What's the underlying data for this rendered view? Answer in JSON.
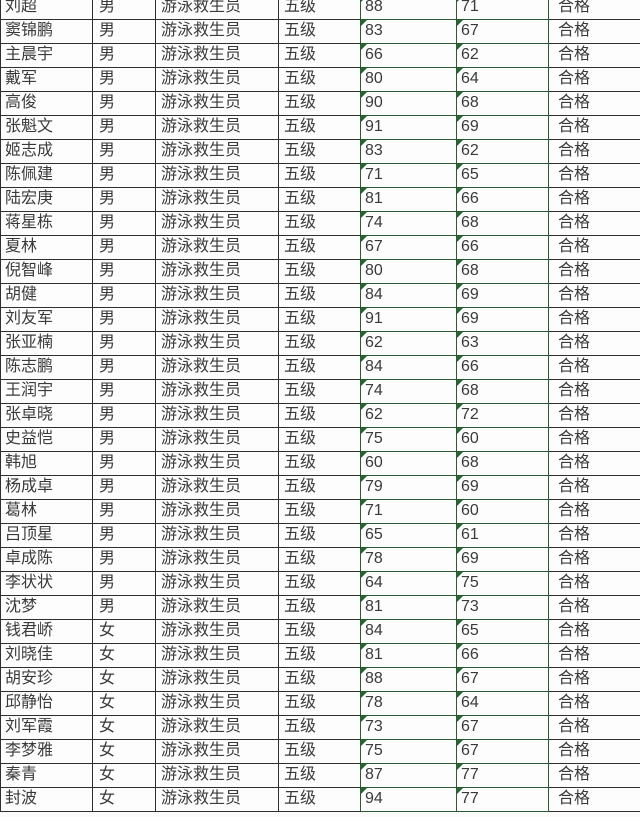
{
  "table": {
    "description_note": "",
    "rows": [
      [
        "刘超",
        "男",
        "游泳救生员",
        "五级",
        "88",
        "71",
        "合格"
      ],
      [
        "窦锦鹏",
        "男",
        "游泳救生员",
        "五级",
        "83",
        "67",
        "合格"
      ],
      [
        "主晨宇",
        "男",
        "游泳救生员",
        "五级",
        "66",
        "62",
        "合格"
      ],
      [
        "戴军",
        "男",
        "游泳救生员",
        "五级",
        "80",
        "64",
        "合格"
      ],
      [
        "高俊",
        "男",
        "游泳救生员",
        "五级",
        "90",
        "68",
        "合格"
      ],
      [
        "张魁文",
        "男",
        "游泳救生员",
        "五级",
        "91",
        "69",
        "合格"
      ],
      [
        "姬志成",
        "男",
        "游泳救生员",
        "五级",
        "83",
        "62",
        "合格"
      ],
      [
        "陈佩建",
        "男",
        "游泳救生员",
        "五级",
        "71",
        "65",
        "合格"
      ],
      [
        "陆宏庚",
        "男",
        "游泳救生员",
        "五级",
        "81",
        "66",
        "合格"
      ],
      [
        "蒋星栋",
        "男",
        "游泳救生员",
        "五级",
        "74",
        "68",
        "合格"
      ],
      [
        "夏林",
        "男",
        "游泳救生员",
        "五级",
        "67",
        "66",
        "合格"
      ],
      [
        "倪智峰",
        "男",
        "游泳救生员",
        "五级",
        "80",
        "68",
        "合格"
      ],
      [
        "胡健",
        "男",
        "游泳救生员",
        "五级",
        "84",
        "69",
        "合格"
      ],
      [
        "刘友军",
        "男",
        "游泳救生员",
        "五级",
        "91",
        "69",
        "合格"
      ],
      [
        "张亚楠",
        "男",
        "游泳救生员",
        "五级",
        "62",
        "63",
        "合格"
      ],
      [
        "陈志鹏",
        "男",
        "游泳救生员",
        "五级",
        "84",
        "66",
        "合格"
      ],
      [
        "王润宇",
        "男",
        "游泳救生员",
        "五级",
        "74",
        "68",
        "合格"
      ],
      [
        "张卓晓",
        "男",
        "游泳救生员",
        "五级",
        "62",
        "72",
        "合格"
      ],
      [
        "史益恺",
        "男",
        "游泳救生员",
        "五级",
        "75",
        "60",
        "合格"
      ],
      [
        "韩旭",
        "男",
        "游泳救生员",
        "五级",
        "60",
        "68",
        "合格"
      ],
      [
        "杨成卓",
        "男",
        "游泳救生员",
        "五级",
        "79",
        "69",
        "合格"
      ],
      [
        "葛林",
        "男",
        "游泳救生员",
        "五级",
        "71",
        "60",
        "合格"
      ],
      [
        "吕顶星",
        "男",
        "游泳救生员",
        "五级",
        "65",
        "61",
        "合格"
      ],
      [
        "卓成陈",
        "男",
        "游泳救生员",
        "五级",
        "78",
        "69",
        "合格"
      ],
      [
        "李状状",
        "男",
        "游泳救生员",
        "五级",
        "64",
        "75",
        "合格"
      ],
      [
        "沈梦",
        "男",
        "游泳救生员",
        "五级",
        "81",
        "73",
        "合格"
      ],
      [
        "钱君峤",
        "女",
        "游泳救生员",
        "五级",
        "84",
        "65",
        "合格"
      ],
      [
        "刘晓佳",
        "女",
        "游泳救生员",
        "五级",
        "81",
        "66",
        "合格"
      ],
      [
        "胡安珍",
        "女",
        "游泳救生员",
        "五级",
        "88",
        "67",
        "合格"
      ],
      [
        "邱静怡",
        "女",
        "游泳救生员",
        "五级",
        "78",
        "64",
        "合格"
      ],
      [
        "刘军霞",
        "女",
        "游泳救生员",
        "五级",
        "73",
        "67",
        "合格"
      ],
      [
        "李梦雅",
        "女",
        "游泳救生员",
        "五级",
        "75",
        "67",
        "合格"
      ],
      [
        "秦青",
        "女",
        "游泳救生员",
        "五级",
        "87",
        "77",
        "合格"
      ],
      [
        "封波",
        "女",
        "游泳救生员",
        "五级",
        "94",
        "77",
        "合格"
      ]
    ]
  },
  "colors": {
    "grid_line": "#2f2f2f",
    "grid_line_green": "#2b5a33",
    "stored_as_text_indicator": "#26672e",
    "text": "#3a3a3a"
  }
}
